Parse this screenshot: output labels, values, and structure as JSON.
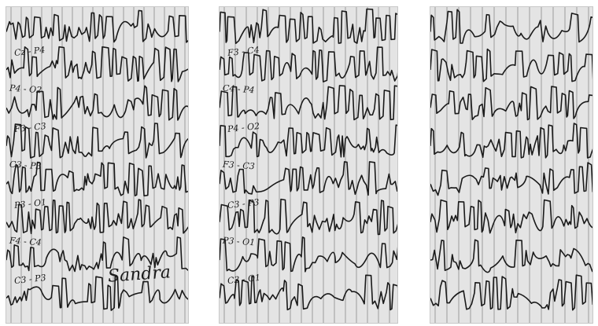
{
  "strips": [
    {
      "id": "strip-1",
      "channel_labels": [
        "Cz - P4",
        "P4 - O2",
        "F3 - C3",
        "C3 - P3",
        "P3 - O1",
        "F4 - C4",
        "C3 - P3"
      ],
      "handwriting": "Sandra"
    },
    {
      "id": "strip-2",
      "channel_labels": [
        "F3 - C4",
        "C4 - P4",
        "P4 - O2",
        "F3 - C3",
        "C3 - P3",
        "P3 - O1",
        "C3 - O1"
      ],
      "handwriting": ""
    },
    {
      "id": "strip-3",
      "channel_labels": [],
      "handwriting": ""
    }
  ],
  "colors": {
    "paper": "#e4e4e4",
    "ink": "#1a1a1a",
    "gridline": "#5a5a5a"
  }
}
